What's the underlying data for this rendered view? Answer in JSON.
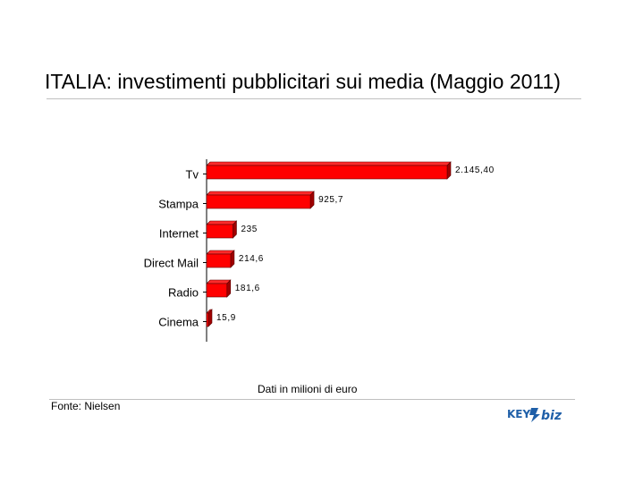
{
  "title": "ITALIA: investimenti pubblicitari sui media (Maggio 2011)",
  "note": "Dati in milioni di euro",
  "source": "Fonte: Nielsen",
  "logo": {
    "text_left": "KEY",
    "text_right": "biz"
  },
  "colors": {
    "bar_front": "#ff0000",
    "bar_top": "#ff2a2a",
    "bar_side": "#a00000",
    "bar_edge": "#5a0000",
    "accent_logo": "#1f5fa8"
  },
  "chart_data": {
    "type": "bar",
    "orientation": "horizontal",
    "style": "3d",
    "categories": [
      "Tv",
      "Stampa",
      "Internet",
      "Direct Mail",
      "Radio",
      "Cinema"
    ],
    "values": [
      2145.4,
      925.7,
      235,
      214.6,
      181.6,
      15.9
    ],
    "value_labels": [
      "2.145,40",
      "925,7",
      "235",
      "214,6",
      "181,6",
      "15,9"
    ],
    "grid": false,
    "legend": "none"
  }
}
